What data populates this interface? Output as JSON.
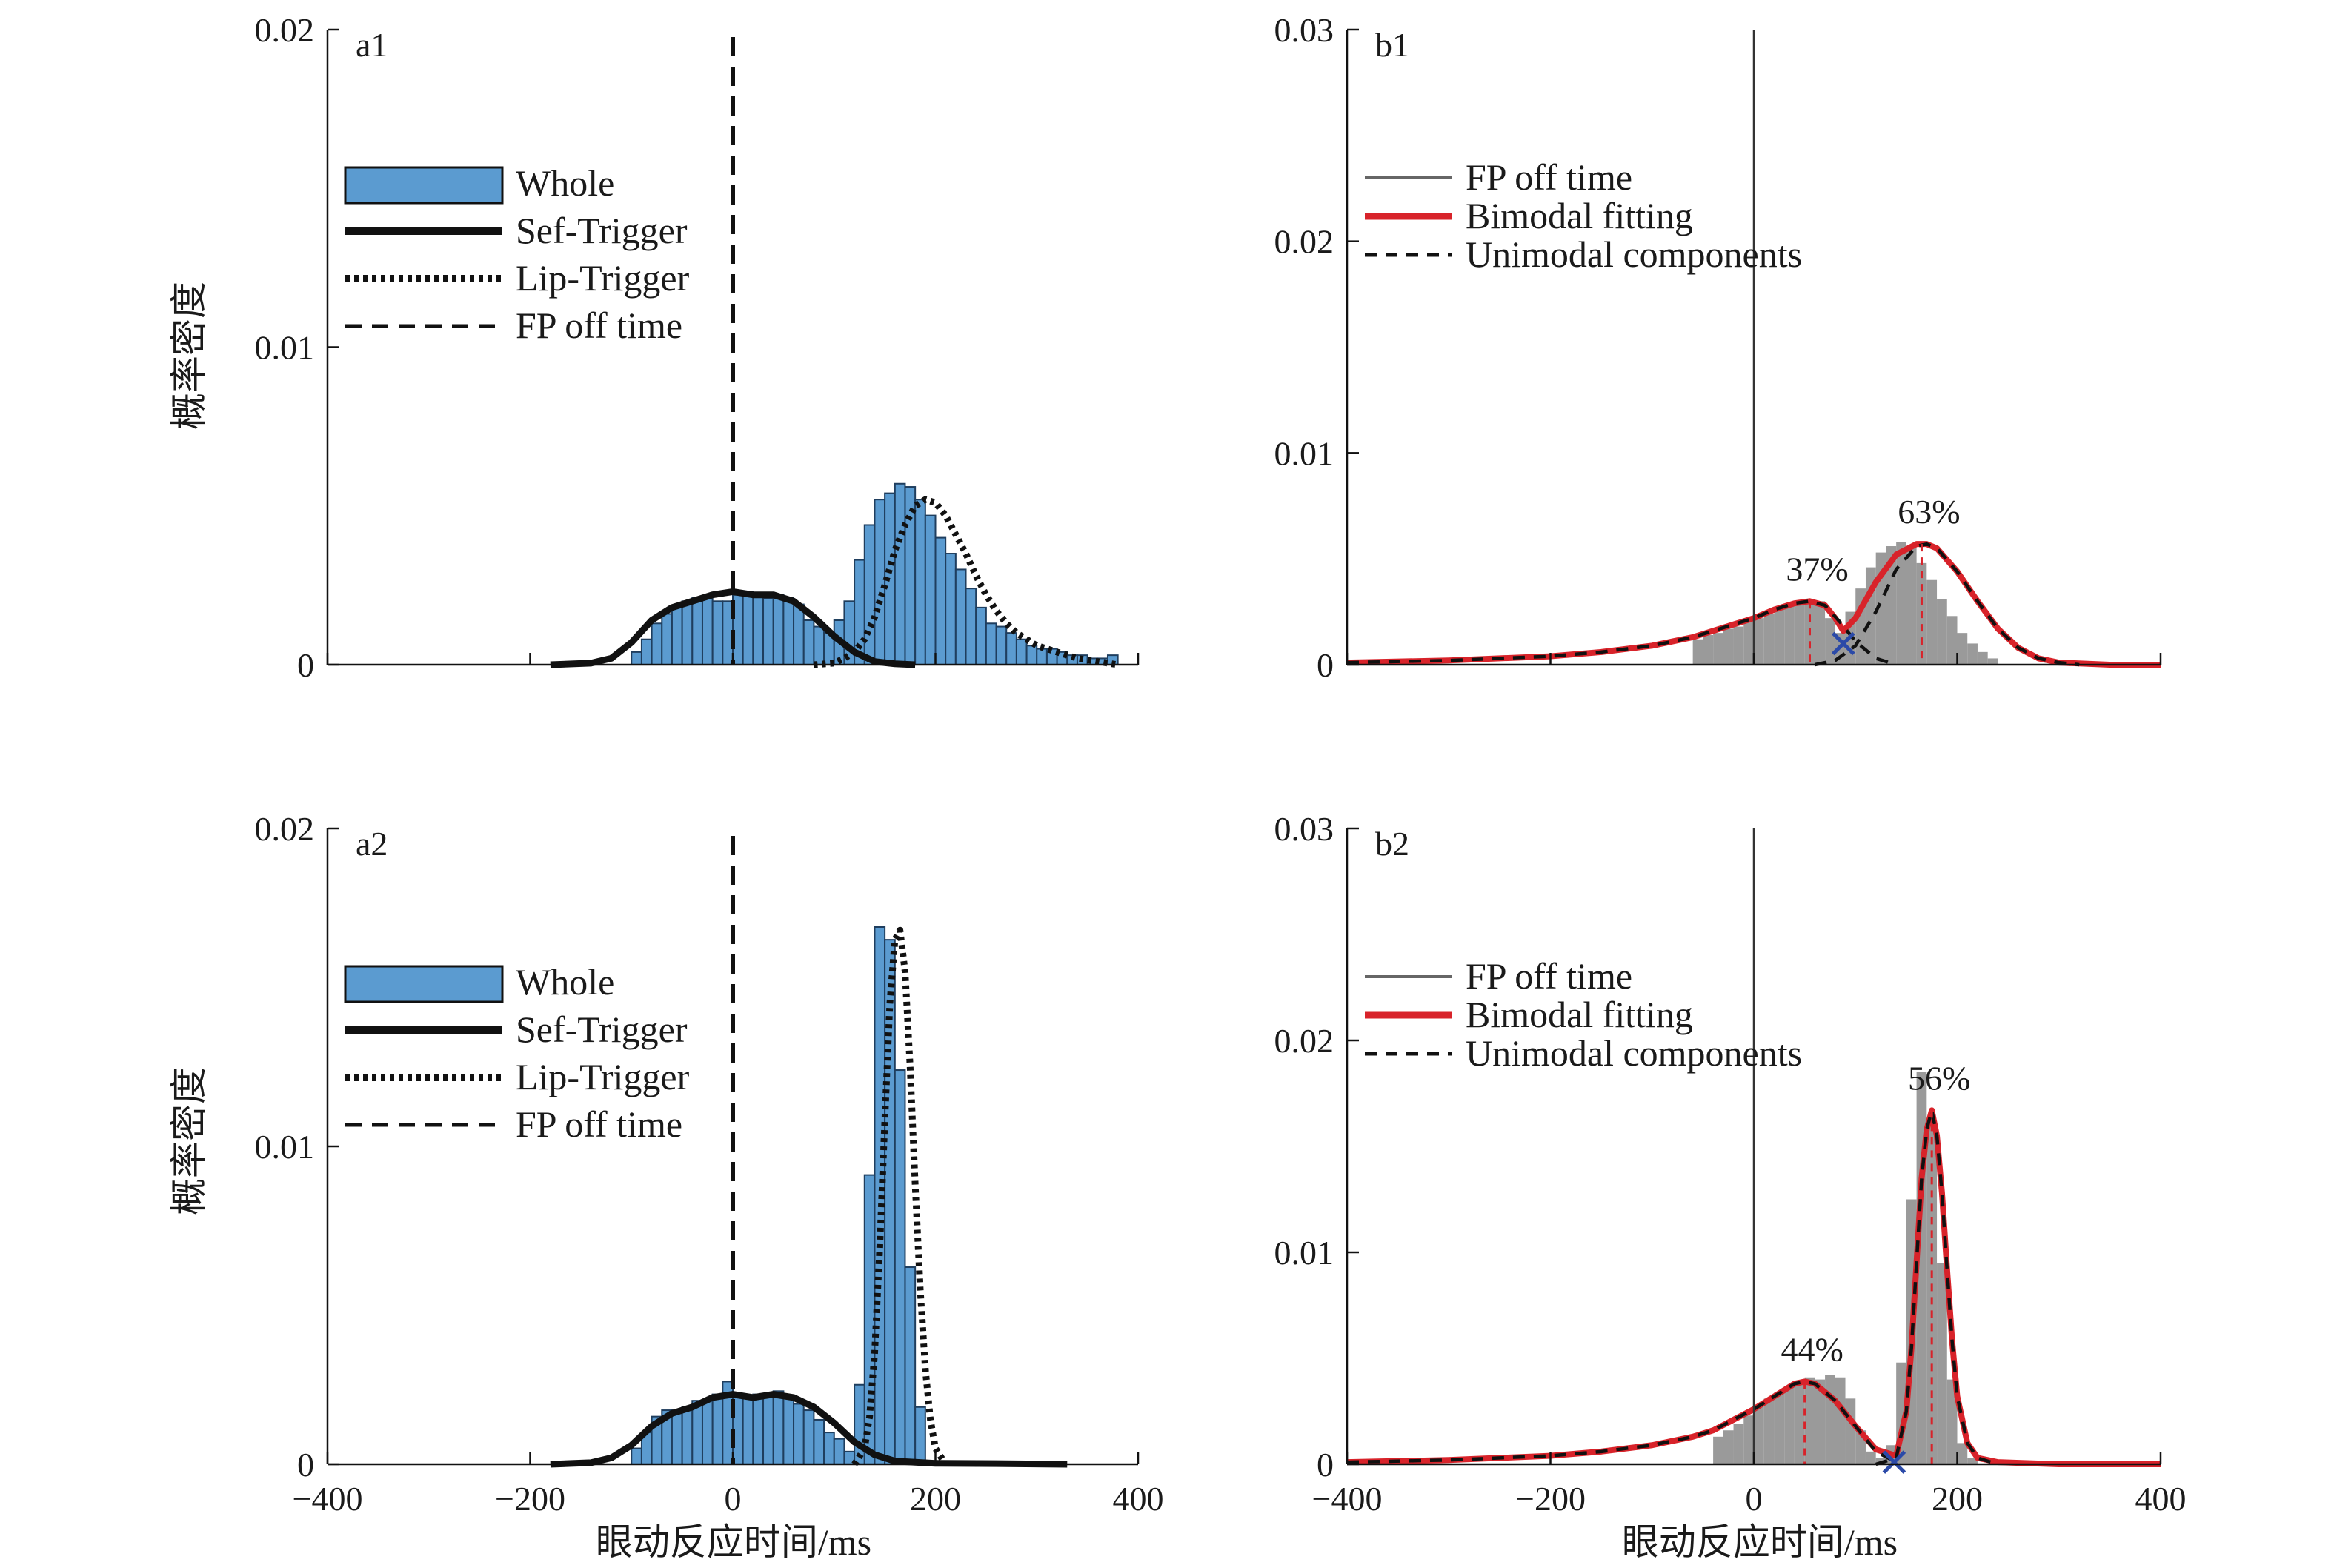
{
  "figure": {
    "xlabel": "眼动反应时间/ms",
    "ylabel": "概率密度"
  },
  "chart_data": [
    {
      "id": "a1",
      "type": "bar",
      "panel_label": "a1",
      "xlim": [
        -400,
        400
      ],
      "ylim": [
        0,
        0.02
      ],
      "xticks": [
        -400,
        -200,
        0,
        200,
        400
      ],
      "xtick_labels": [
        "-400",
        "-200",
        "0",
        "200",
        "400"
      ],
      "yticks": [
        0,
        0.01,
        0.02
      ],
      "ytick_labels": [
        "0",
        "0.01",
        "0.02"
      ],
      "ylabel": "概率密度",
      "show_x_ticklabels": false,
      "legend": [
        {
          "label": "Whole",
          "style": "patch"
        },
        {
          "label": "Sef-Trigger",
          "style": "thick"
        },
        {
          "label": "Lip-Trigger",
          "style": "dotted"
        },
        {
          "label": "FP off time",
          "style": "dashed"
        }
      ],
      "vline_x": 0,
      "histogram": {
        "bin_start": -100,
        "bin_width": 10,
        "values": [
          0.0004,
          0.0008,
          0.0013,
          0.0016,
          0.0018,
          0.002,
          0.0021,
          0.0021,
          0.002,
          0.002,
          0.0022,
          0.0023,
          0.0022,
          0.0021,
          0.0022,
          0.0021,
          0.0019,
          0.0014,
          0.0012,
          0.001,
          0.0014,
          0.002,
          0.0033,
          0.0044,
          0.0052,
          0.0054,
          0.0057,
          0.0056,
          0.0052,
          0.0047,
          0.004,
          0.0035,
          0.003,
          0.0024,
          0.0018,
          0.0013,
          0.0012,
          0.001,
          0.0008,
          0.0006,
          0.0005,
          0.0005,
          0.0004,
          0.0003,
          0.0003,
          0.0002,
          0.0002,
          0.0003
        ]
      },
      "series": [
        {
          "name": "Sef-Trigger",
          "style": "thick",
          "x": [
            -180,
            -140,
            -120,
            -100,
            -80,
            -60,
            -40,
            -20,
            0,
            20,
            40,
            60,
            80,
            100,
            120,
            140,
            160,
            180
          ],
          "y": [
            0,
            5e-05,
            0.0002,
            0.0007,
            0.0014,
            0.0018,
            0.002,
            0.0022,
            0.0023,
            0.0022,
            0.0022,
            0.002,
            0.0015,
            0.0009,
            0.0004,
            0.0001,
            3e-05,
            0
          ]
        },
        {
          "name": "Lip-Trigger",
          "style": "dotted",
          "x": [
            80,
            100,
            110,
            120,
            130,
            140,
            150,
            160,
            170,
            180,
            190,
            200,
            210,
            220,
            230,
            240,
            250,
            260,
            270,
            280,
            300,
            320,
            340,
            360,
            380
          ],
          "y": [
            0,
            5e-05,
            0.0002,
            0.0004,
            0.0008,
            0.0015,
            0.0025,
            0.0036,
            0.0044,
            0.005,
            0.0052,
            0.0051,
            0.0047,
            0.0041,
            0.0035,
            0.0028,
            0.0022,
            0.0017,
            0.0013,
            0.001,
            0.0006,
            0.0004,
            0.0002,
            0.0001,
            0
          ]
        }
      ]
    },
    {
      "id": "b1",
      "type": "area",
      "panel_label": "b1",
      "xlim": [
        -400,
        400
      ],
      "ylim": [
        0,
        0.03
      ],
      "xticks": [
        -400,
        -200,
        0,
        200,
        400
      ],
      "xtick_labels": [
        "-400",
        "-200",
        "0",
        "200",
        "400"
      ],
      "yticks": [
        0,
        0.01,
        0.02,
        0.03
      ],
      "ytick_labels": [
        "0",
        "0.01",
        "0.02",
        "0.03"
      ],
      "show_x_ticklabels": false,
      "legend": [
        {
          "label": "FP off time",
          "style": "gray"
        },
        {
          "label": "Bimodal fitting",
          "style": "red"
        },
        {
          "label": "Unimodal components",
          "style": "dashed"
        }
      ],
      "vline_x": 0,
      "peaks": [
        {
          "label": "37%",
          "x": 55,
          "y": 0.003
        },
        {
          "label": "63%",
          "x": 165,
          "y": 0.0057
        }
      ],
      "cross": {
        "x": 88,
        "y": 0.001
      },
      "histogram": {
        "bin_start": -60,
        "bin_width": 10,
        "values": [
          0.0012,
          0.0014,
          0.0015,
          0.0017,
          0.0018,
          0.002,
          0.0022,
          0.0024,
          0.0026,
          0.0028,
          0.003,
          0.0031,
          0.003,
          0.0022,
          0.0015,
          0.0025,
          0.0036,
          0.0046,
          0.0053,
          0.0056,
          0.0058,
          0.0055,
          0.0048,
          0.004,
          0.0031,
          0.0023,
          0.0015,
          0.001,
          0.0006,
          0.0003
        ]
      },
      "series": [
        {
          "name": "Bimodal fitting",
          "style": "red",
          "x": [
            -400,
            -300,
            -200,
            -150,
            -100,
            -80,
            -60,
            -40,
            -20,
            0,
            20,
            40,
            55,
            70,
            80,
            88,
            100,
            120,
            140,
            160,
            170,
            180,
            200,
            220,
            240,
            260,
            280,
            300,
            350,
            400
          ],
          "y": [
            0.0001,
            0.0002,
            0.0004,
            0.0006,
            0.0009,
            0.0011,
            0.0013,
            0.0016,
            0.0019,
            0.0022,
            0.0026,
            0.0029,
            0.003,
            0.0028,
            0.0022,
            0.0016,
            0.0022,
            0.0039,
            0.0052,
            0.0057,
            0.0057,
            0.0055,
            0.0044,
            0.003,
            0.0017,
            0.0008,
            0.0003,
            0.0001,
            0,
            0
          ]
        },
        {
          "name": "Unimodal components",
          "style": "dashed",
          "x": [
            -400,
            -300,
            -200,
            -150,
            -100,
            -80,
            -60,
            -40,
            -20,
            0,
            20,
            40,
            55,
            70,
            85,
            100,
            120,
            140
          ],
          "y": [
            0.0001,
            0.0002,
            0.0004,
            0.0006,
            0.0009,
            0.0011,
            0.0013,
            0.0016,
            0.0019,
            0.0022,
            0.0026,
            0.0029,
            0.003,
            0.0028,
            0.002,
            0.0011,
            0.0003,
            0
          ]
        },
        {
          "name": "Unimodal components",
          "style": "dashed",
          "x": [
            60,
            80,
            100,
            120,
            140,
            160,
            170,
            180,
            200,
            220,
            240,
            260,
            280,
            300,
            320
          ],
          "y": [
            0,
            0.0002,
            0.0009,
            0.0025,
            0.0045,
            0.0056,
            0.0057,
            0.0055,
            0.0044,
            0.003,
            0.0017,
            0.0008,
            0.0003,
            0.0001,
            0
          ]
        }
      ]
    },
    {
      "id": "a2",
      "type": "bar",
      "panel_label": "a2",
      "xlim": [
        -400,
        400
      ],
      "ylim": [
        0,
        0.02
      ],
      "xticks": [
        -400,
        -200,
        0,
        200,
        400
      ],
      "xtick_labels": [
        "-400",
        "-200",
        "0",
        "200",
        "400"
      ],
      "yticks": [
        0,
        0.01,
        0.02
      ],
      "ytick_labels": [
        "0",
        "0.01",
        "0.02"
      ],
      "ylabel": "概率密度",
      "xlabel": "眼动反应时间/ms",
      "show_x_ticklabels": true,
      "legend": [
        {
          "label": "Whole",
          "style": "patch"
        },
        {
          "label": "Sef-Trigger",
          "style": "thick"
        },
        {
          "label": "Lip-Trigger",
          "style": "dotted"
        },
        {
          "label": "FP off time",
          "style": "dashed"
        }
      ],
      "vline_x": 0,
      "histogram": {
        "bin_start": -100,
        "bin_width": 10,
        "values": [
          0.0005,
          0.001,
          0.0015,
          0.0017,
          0.0017,
          0.0018,
          0.002,
          0.002,
          0.0022,
          0.0026,
          0.0021,
          0.0021,
          0.0022,
          0.0022,
          0.0023,
          0.0021,
          0.0019,
          0.0017,
          0.0014,
          0.001,
          0.0008,
          0.0004,
          0.0025,
          0.0091,
          0.0169,
          0.0165,
          0.0124,
          0.0062,
          0.0018
        ]
      },
      "series": [
        {
          "name": "Sef-Trigger",
          "style": "thick",
          "x": [
            -180,
            -140,
            -120,
            -100,
            -80,
            -60,
            -40,
            -20,
            0,
            20,
            40,
            60,
            80,
            100,
            120,
            140,
            160,
            200,
            260,
            330
          ],
          "y": [
            0,
            5e-05,
            0.0002,
            0.0006,
            0.0012,
            0.0016,
            0.0018,
            0.0021,
            0.0022,
            0.0021,
            0.0022,
            0.0021,
            0.0018,
            0.0013,
            0.0007,
            0.0003,
            0.0001,
            3e-05,
            2e-05,
            0
          ]
        },
        {
          "name": "Lip-Trigger",
          "style": "dotted",
          "x": [
            120,
            130,
            135,
            140,
            145,
            150,
            155,
            160,
            165,
            170,
            175,
            180,
            185,
            190,
            195,
            200,
            210
          ],
          "y": [
            0,
            0.0005,
            0.0015,
            0.0035,
            0.0068,
            0.0108,
            0.0145,
            0.0165,
            0.0168,
            0.0155,
            0.0125,
            0.0088,
            0.0055,
            0.003,
            0.0014,
            0.0005,
            0
          ]
        }
      ]
    },
    {
      "id": "b2",
      "type": "area",
      "panel_label": "b2",
      "xlim": [
        -400,
        400
      ],
      "ylim": [
        0,
        0.03
      ],
      "xticks": [
        -400,
        -200,
        0,
        200,
        400
      ],
      "xtick_labels": [
        "-400",
        "-200",
        "0",
        "200",
        "400"
      ],
      "yticks": [
        0,
        0.01,
        0.02,
        0.03
      ],
      "ytick_labels": [
        "0",
        "0.01",
        "0.02",
        "0.03"
      ],
      "xlabel": "眼动反应时间/ms",
      "show_x_ticklabels": true,
      "legend": [
        {
          "label": "FP off time",
          "style": "gray"
        },
        {
          "label": "Bimodal fitting",
          "style": "red"
        },
        {
          "label": "Unimodal components",
          "style": "dashed"
        }
      ],
      "vline_x": 0,
      "peaks": [
        {
          "label": "44%",
          "x": 50,
          "y": 0.0039
        },
        {
          "label": "56%",
          "x": 175,
          "y": 0.0167
        }
      ],
      "cross": {
        "x": 138,
        "y": 0.0001
      },
      "histogram": {
        "bin_start": -40,
        "bin_width": 10,
        "values": [
          0.0013,
          0.0016,
          0.0019,
          0.0023,
          0.0028,
          0.0031,
          0.0034,
          0.0037,
          0.0039,
          0.0041,
          0.004,
          0.0042,
          0.0041,
          0.0031,
          0.0016,
          0.0006,
          0.0003,
          0.0009,
          0.0048,
          0.0125,
          0.0185,
          0.0162,
          0.0095,
          0.004,
          0.001,
          0.0003
        ]
      },
      "series": [
        {
          "name": "Bimodal fitting",
          "style": "red",
          "x": [
            -400,
            -300,
            -200,
            -150,
            -100,
            -60,
            -40,
            -20,
            0,
            20,
            40,
            50,
            60,
            80,
            100,
            120,
            140,
            150,
            155,
            160,
            165,
            170,
            175,
            180,
            185,
            190,
            195,
            200,
            210,
            220,
            240,
            300,
            400
          ],
          "y": [
            0.0001,
            0.0002,
            0.0004,
            0.0006,
            0.0009,
            0.0013,
            0.0016,
            0.0021,
            0.0026,
            0.0032,
            0.0038,
            0.0039,
            0.0038,
            0.003,
            0.0018,
            0.0007,
            0.0004,
            0.0025,
            0.0055,
            0.0095,
            0.0135,
            0.0158,
            0.0167,
            0.0155,
            0.0128,
            0.0092,
            0.0058,
            0.0032,
            0.001,
            0.0003,
            0.0001,
            0,
            0
          ]
        },
        {
          "name": "Unimodal components",
          "style": "dashed",
          "x": [
            -400,
            -300,
            -200,
            -150,
            -100,
            -60,
            -40,
            -20,
            0,
            20,
            40,
            50,
            60,
            80,
            100,
            120,
            140
          ],
          "y": [
            0.0001,
            0.0002,
            0.0004,
            0.0006,
            0.0009,
            0.0013,
            0.0016,
            0.0021,
            0.0026,
            0.0032,
            0.0038,
            0.0039,
            0.0038,
            0.003,
            0.0018,
            0.0006,
            0.0001
          ]
        },
        {
          "name": "Unimodal components",
          "style": "dashed",
          "x": [
            120,
            140,
            150,
            155,
            160,
            165,
            170,
            175,
            180,
            185,
            190,
            195,
            200,
            210,
            220,
            240
          ],
          "y": [
            0,
            0.0003,
            0.0025,
            0.0055,
            0.0095,
            0.0135,
            0.0158,
            0.0167,
            0.0155,
            0.0128,
            0.0092,
            0.0058,
            0.0032,
            0.001,
            0.0003,
            0
          ]
        }
      ]
    }
  ]
}
